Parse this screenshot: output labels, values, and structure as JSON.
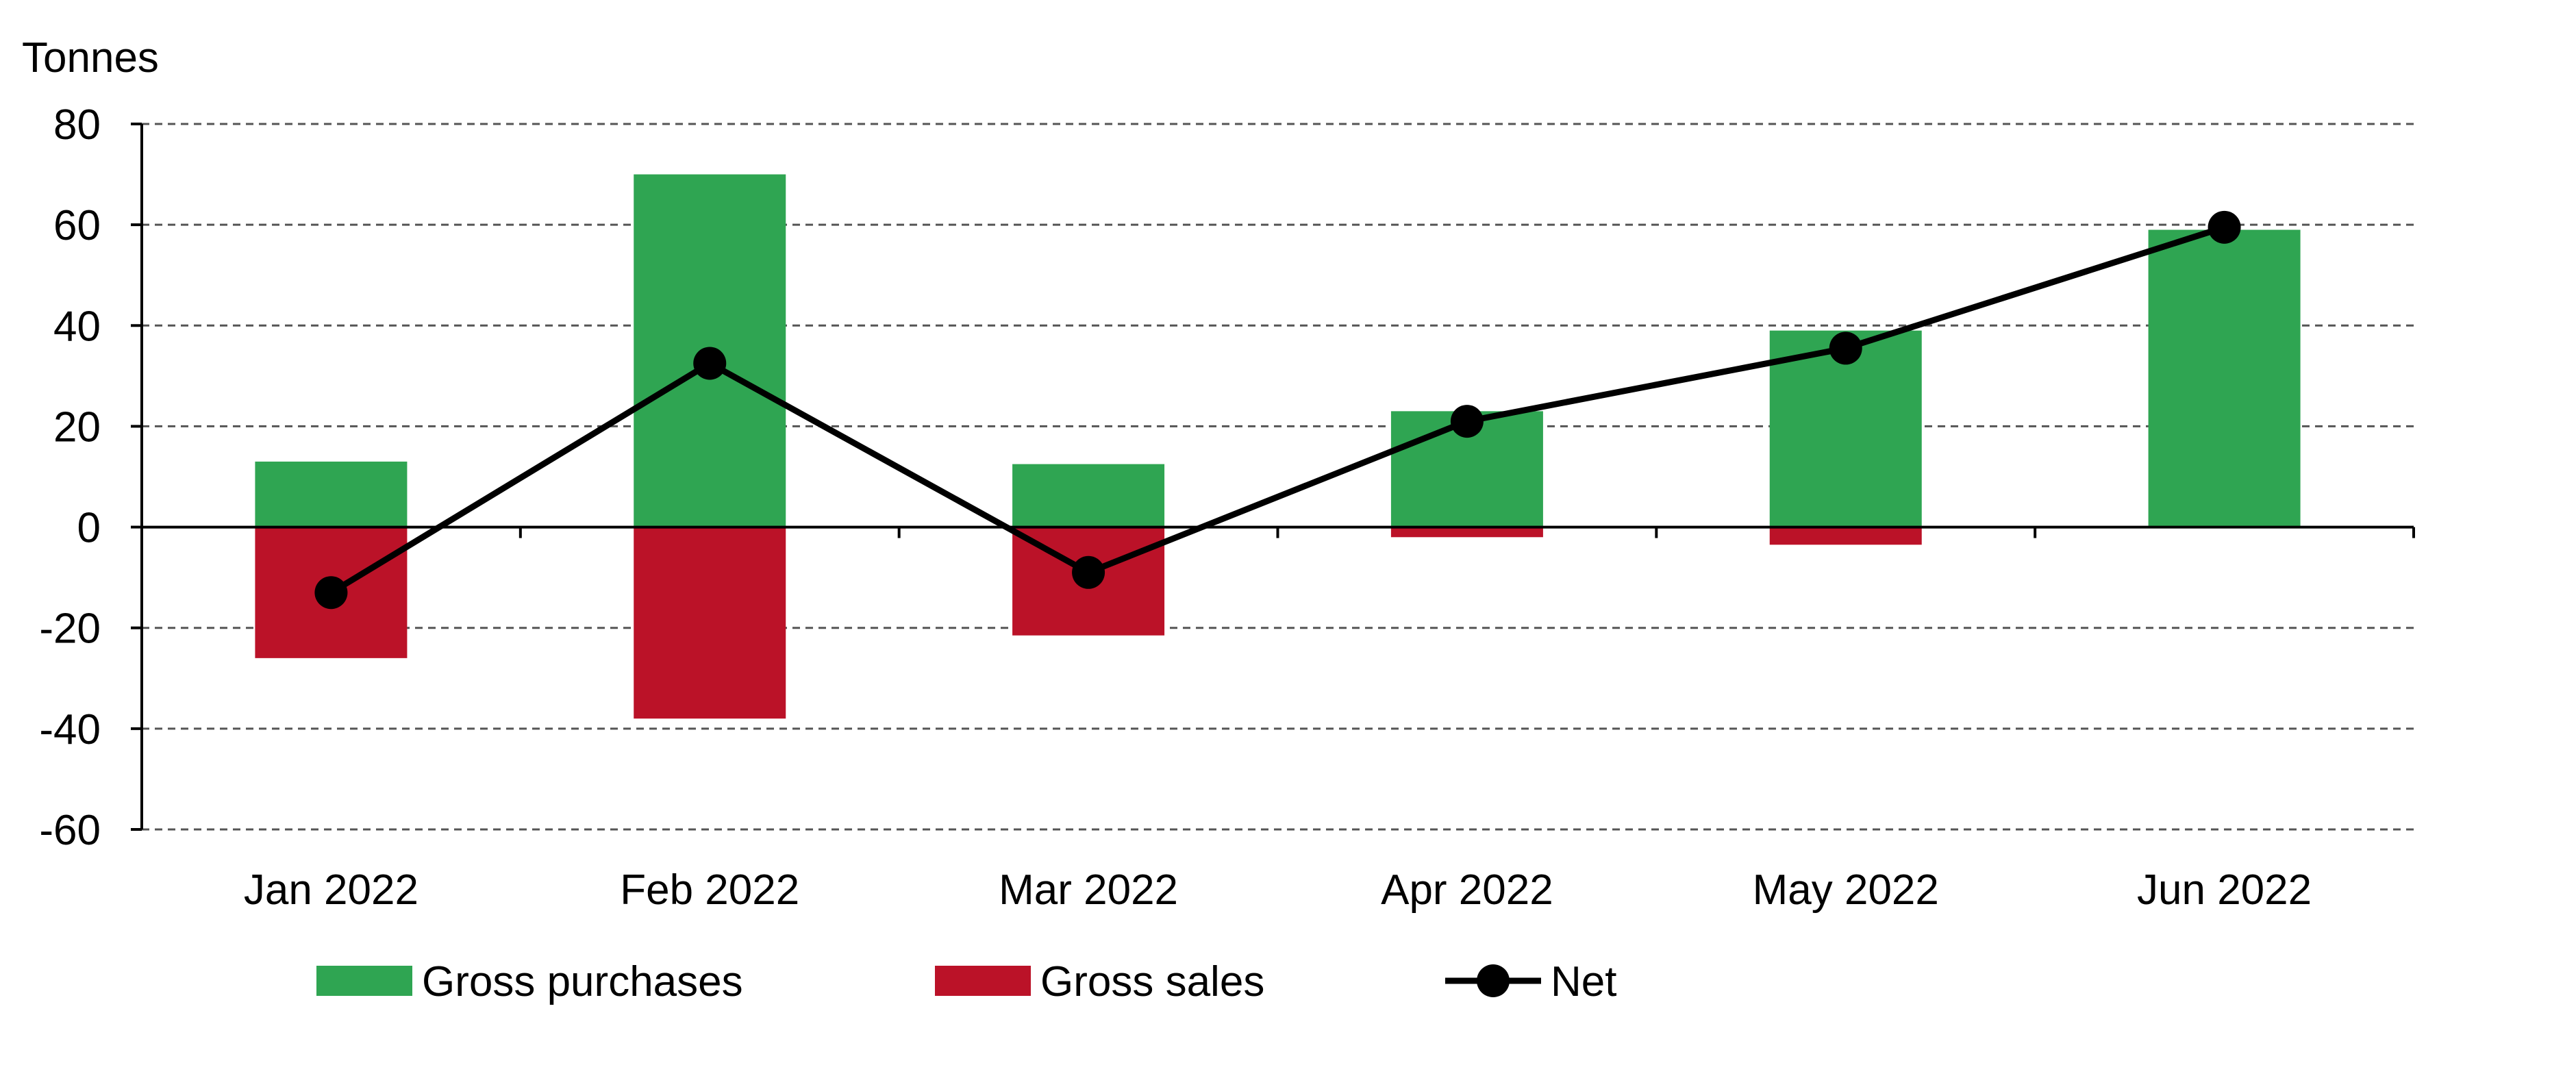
{
  "chart_data": {
    "type": "bar",
    "title": "",
    "unit_label": "Tonnes",
    "xlabel": "",
    "ylabel": "",
    "categories": [
      "Jan 2022",
      "Feb 2022",
      "Mar 2022",
      "Apr 2022",
      "May 2022",
      "Jun 2022"
    ],
    "series": [
      {
        "name": "Gross purchases",
        "kind": "bar",
        "color": "#2fa552",
        "values": [
          13,
          70,
          12.5,
          23,
          39,
          59
        ]
      },
      {
        "name": "Gross sales",
        "kind": "bar",
        "color": "#bb1228",
        "values": [
          -26,
          -38,
          -21.5,
          -2,
          -3.5,
          0
        ]
      },
      {
        "name": "Net",
        "kind": "line",
        "color": "#000000",
        "values": [
          -13,
          32.5,
          -9,
          21,
          35.5,
          59.5
        ]
      }
    ],
    "ylim": [
      -60,
      80
    ],
    "yticks": [
      "80",
      "60",
      "40",
      "20",
      "0",
      "-20",
      "-40",
      "-60"
    ],
    "ytick_values": [
      80,
      60,
      40,
      20,
      0,
      -20,
      -40,
      -60
    ],
    "grid": true,
    "grid_style": "dashed",
    "legend_placement": "bottom"
  }
}
